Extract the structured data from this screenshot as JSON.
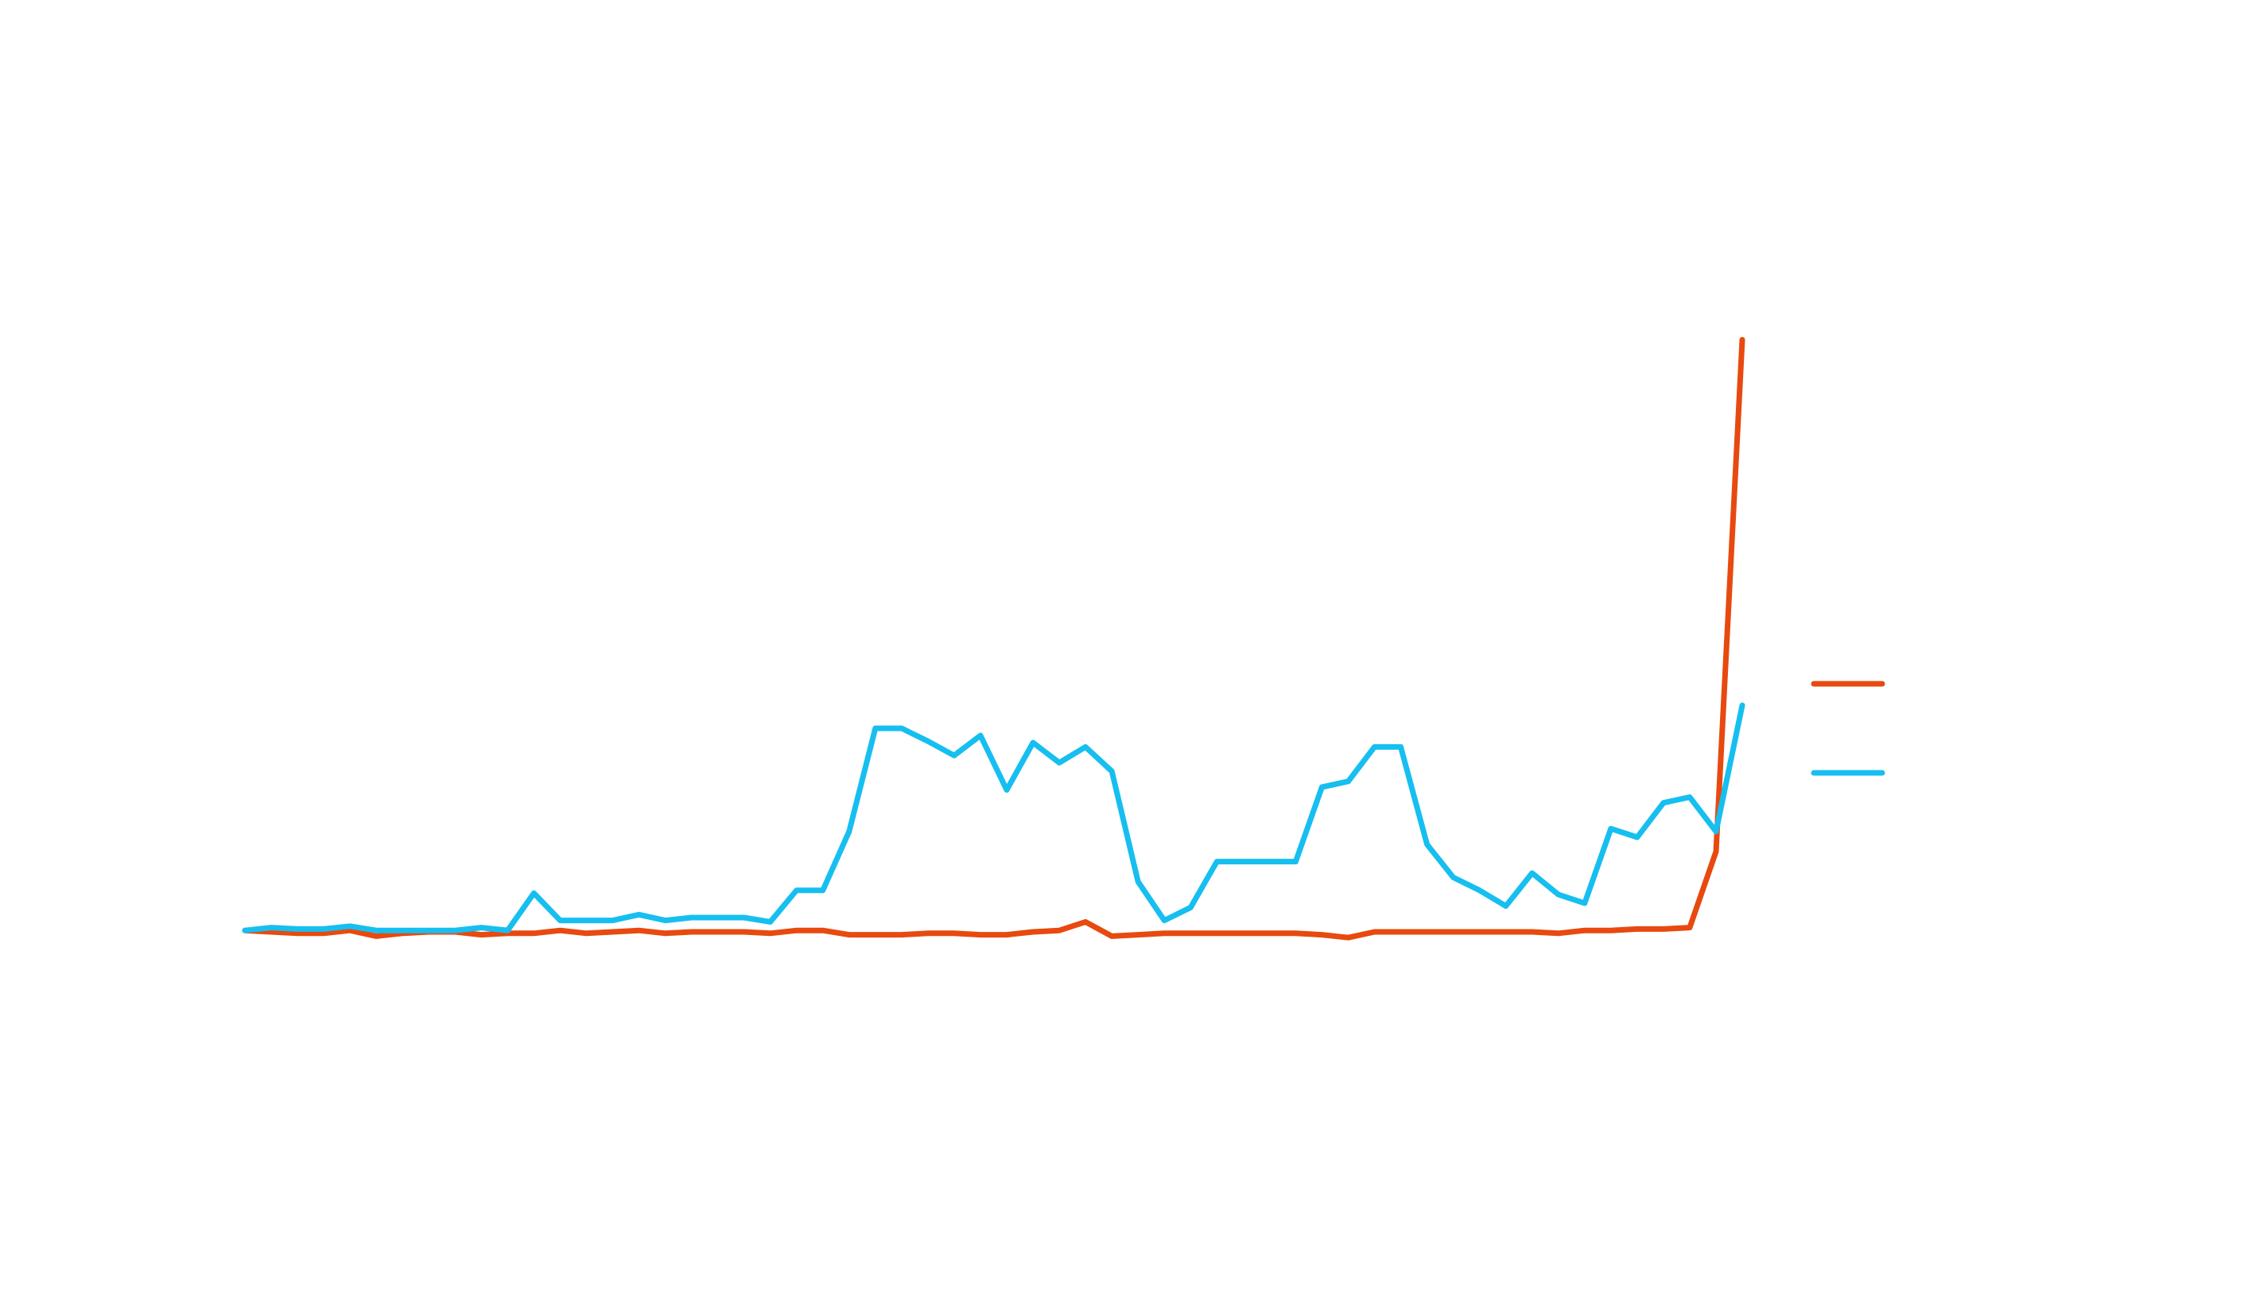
{
  "chart_data": {
    "type": "line",
    "categories": [
      null,
      null,
      null,
      null,
      null,
      null,
      null,
      null,
      null,
      null,
      null,
      null,
      null,
      null,
      null,
      null,
      null,
      null,
      null,
      null,
      null,
      null,
      null,
      null,
      null,
      null,
      null,
      null,
      null,
      null,
      null,
      null,
      null,
      null,
      null,
      null,
      null,
      null,
      null,
      null,
      null,
      null,
      null,
      null,
      null,
      null,
      null,
      null,
      null,
      null,
      null,
      null,
      null,
      null,
      null,
      null,
      null,
      null
    ],
    "series": [
      {
        "color": "#e8490f",
        "values": [
          6,
          5,
          4,
          4,
          6,
          2,
          4,
          5,
          5,
          3,
          4,
          4,
          6,
          4,
          5,
          6,
          4,
          5,
          5,
          5,
          4,
          6,
          6,
          3,
          3,
          3,
          4,
          4,
          3,
          3,
          5,
          6,
          12,
          2,
          3,
          4,
          4,
          4,
          4,
          4,
          4,
          3,
          1,
          5,
          5,
          5,
          5,
          5,
          5,
          5,
          4,
          6,
          6,
          7,
          7,
          8,
          61,
          418
        ]
      },
      {
        "color": "#16bff0",
        "values": [
          6,
          8,
          7,
          7,
          9,
          6,
          6,
          6,
          6,
          8,
          6,
          32,
          13,
          13,
          13,
          17,
          13,
          15,
          15,
          15,
          12,
          34,
          34,
          75,
          147,
          147,
          138,
          128,
          142,
          104,
          137,
          123,
          134,
          117,
          40,
          13,
          22,
          54,
          54,
          54,
          54,
          106,
          110,
          134,
          134,
          66,
          43,
          34,
          23,
          46,
          31,
          25,
          77,
          71,
          95,
          99,
          75,
          163
        ]
      }
    ],
    "ylim": [
      0,
      655
    ]
  }
}
